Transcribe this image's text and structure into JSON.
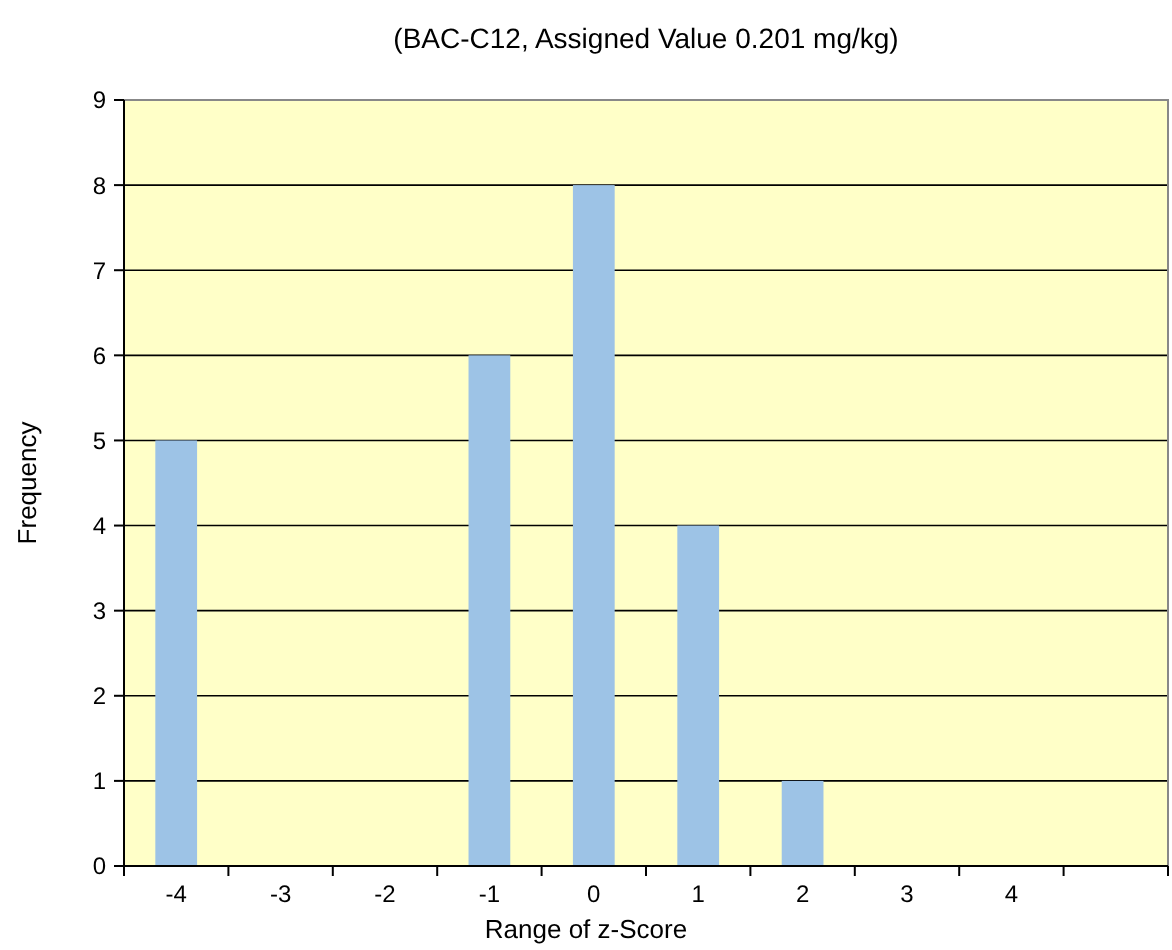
{
  "chart_data": {
    "type": "bar",
    "title": "(BAC-C12, Assigned Value 0.201 mg/kg)",
    "xlabel": "Range of z-Score",
    "ylabel": "Frequency",
    "categories": [
      "-4",
      "-3",
      "-2",
      "-1",
      "0",
      "1",
      "2",
      "3",
      "4",
      null
    ],
    "values": [
      5,
      0,
      0,
      6,
      8,
      4,
      1,
      0,
      0,
      0
    ],
    "color": "#9dc3e6",
    "ylim": [
      0,
      9
    ],
    "yticks": [
      0,
      1,
      2,
      3,
      4,
      5,
      6,
      7,
      8,
      9
    ],
    "grid": "y"
  }
}
